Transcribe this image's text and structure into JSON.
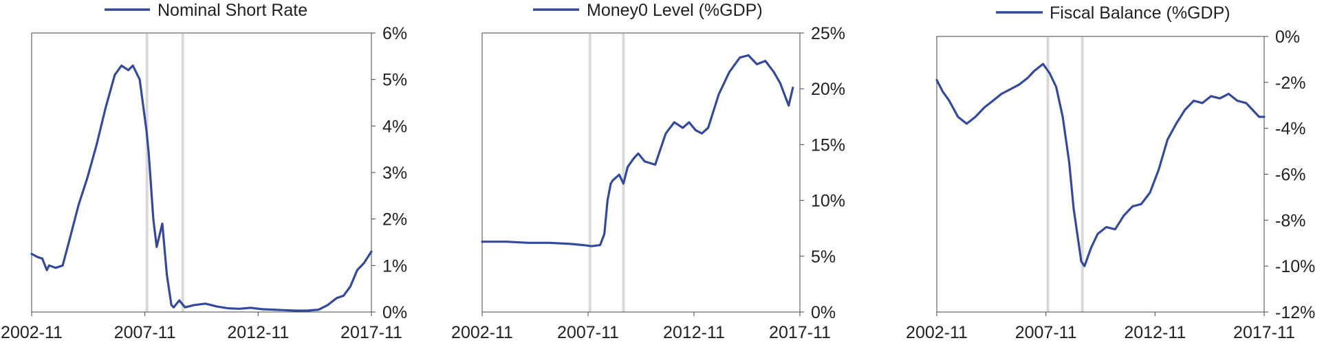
{
  "colors": {
    "series": "#34499a",
    "recession": "#d9d9d9",
    "axis": "#444444",
    "text": "#231f20"
  },
  "chart_data": [
    {
      "type": "line",
      "title": "",
      "legend": "Nominal Short Rate",
      "legend_position": "top",
      "xlabel": "",
      "ylabel": "",
      "x_ticks": [
        "2002-11",
        "2007-11",
        "2012-11",
        "2017-11"
      ],
      "y_ticks": [
        "6%",
        "5%",
        "4%",
        "3%",
        "2%",
        "1%",
        "0%"
      ],
      "ylim": [
        0,
        6
      ],
      "xlim": [
        2002.83,
        2017.83
      ],
      "grid": false,
      "recession_bands": [
        2007.92,
        2009.5
      ],
      "series": [
        {
          "name": "Nominal Short Rate",
          "x": [
            2002.83,
            2003.1,
            2003.3,
            2003.5,
            2003.6,
            2003.9,
            2004.2,
            2004.5,
            2004.9,
            2005.3,
            2005.7,
            2006.1,
            2006.5,
            2006.8,
            2007.1,
            2007.3,
            2007.6,
            2007.9,
            2008.0,
            2008.2,
            2008.35,
            2008.6,
            2008.8,
            2009.0,
            2009.1,
            2009.35,
            2009.6,
            2010.0,
            2010.5,
            2011.0,
            2011.5,
            2012.0,
            2012.5,
            2013.0,
            2013.5,
            2014.0,
            2014.5,
            2015.0,
            2015.5,
            2015.9,
            2016.3,
            2016.6,
            2016.9,
            2017.2,
            2017.5,
            2017.83
          ],
          "y": [
            1.25,
            1.18,
            1.15,
            0.9,
            1.0,
            0.95,
            1.0,
            1.55,
            2.3,
            2.9,
            3.6,
            4.4,
            5.1,
            5.3,
            5.2,
            5.3,
            5.0,
            3.9,
            3.4,
            2.0,
            1.4,
            1.9,
            0.8,
            0.15,
            0.1,
            0.25,
            0.1,
            0.15,
            0.18,
            0.12,
            0.08,
            0.07,
            0.09,
            0.06,
            0.05,
            0.04,
            0.03,
            0.03,
            0.05,
            0.15,
            0.3,
            0.35,
            0.55,
            0.9,
            1.05,
            1.3
          ]
        }
      ]
    },
    {
      "type": "line",
      "title": "",
      "legend": "Money0 Level (%GDP)",
      "legend_position": "top",
      "xlabel": "",
      "ylabel": "",
      "x_ticks": [
        "2002-11",
        "2007-11",
        "2012-11",
        "2017-11"
      ],
      "y_ticks": [
        "25%",
        "20%",
        "15%",
        "10%",
        "5%",
        "0%"
      ],
      "ylim": [
        0,
        25
      ],
      "xlim": [
        2002.83,
        2017.83
      ],
      "grid": false,
      "recession_bands": [
        2007.92,
        2009.5
      ],
      "series": [
        {
          "name": "Money0 Level (%GDP)",
          "x": [
            2002.83,
            2004.0,
            2005.0,
            2006.0,
            2007.0,
            2007.6,
            2008.0,
            2008.4,
            2008.6,
            2008.75,
            2008.9,
            2009.0,
            2009.3,
            2009.5,
            2009.7,
            2010.0,
            2010.2,
            2010.5,
            2011.0,
            2011.5,
            2011.9,
            2012.3,
            2012.6,
            2012.9,
            2013.2,
            2013.5,
            2014.0,
            2014.5,
            2015.0,
            2015.4,
            2015.8,
            2016.2,
            2016.6,
            2016.9,
            2017.1,
            2017.3,
            2017.5
          ],
          "y": [
            6.3,
            6.3,
            6.2,
            6.2,
            6.1,
            6.0,
            5.9,
            6.0,
            7.0,
            10.0,
            11.5,
            11.8,
            12.3,
            11.5,
            13.0,
            13.8,
            14.2,
            13.5,
            13.2,
            16.0,
            17.0,
            16.5,
            17.0,
            16.3,
            16.0,
            16.5,
            19.5,
            21.5,
            22.8,
            23.0,
            22.2,
            22.5,
            21.5,
            20.5,
            19.5,
            18.5,
            20.1
          ]
        }
      ]
    },
    {
      "type": "line",
      "title": "",
      "legend": "Fiscal Balance (%GDP)",
      "legend_position": "top",
      "xlabel": "",
      "ylabel": "",
      "x_ticks": [
        "2002-11",
        "2007-11",
        "2012-11",
        "2017-11"
      ],
      "y_ticks": [
        "0%",
        "-2%",
        "-4%",
        "-6%",
        "-8%",
        "-10%",
        "-12%"
      ],
      "ylim": [
        -12,
        0
      ],
      "xlim": [
        2002.83,
        2017.83
      ],
      "grid": false,
      "recession_bands": [
        2007.92,
        2009.5
      ],
      "series": [
        {
          "name": "Fiscal Balance (%GDP)",
          "x": [
            2002.83,
            2003.1,
            2003.4,
            2003.8,
            2004.2,
            2004.6,
            2005.0,
            2005.4,
            2005.8,
            2006.2,
            2006.6,
            2007.0,
            2007.3,
            2007.7,
            2008.0,
            2008.3,
            2008.6,
            2008.9,
            2009.1,
            2009.3,
            2009.45,
            2009.6,
            2009.9,
            2010.2,
            2010.6,
            2011.0,
            2011.4,
            2011.8,
            2012.2,
            2012.6,
            2013.0,
            2013.4,
            2013.8,
            2014.2,
            2014.6,
            2015.0,
            2015.4,
            2015.8,
            2016.2,
            2016.6,
            2017.0,
            2017.3,
            2017.6,
            2017.83
          ],
          "y": [
            -1.9,
            -2.4,
            -2.8,
            -3.5,
            -3.8,
            -3.5,
            -3.1,
            -2.8,
            -2.5,
            -2.3,
            -2.1,
            -1.8,
            -1.5,
            -1.2,
            -1.6,
            -2.2,
            -3.5,
            -5.5,
            -7.5,
            -8.8,
            -9.8,
            -10.0,
            -9.2,
            -8.6,
            -8.3,
            -8.4,
            -7.8,
            -7.4,
            -7.3,
            -6.8,
            -5.8,
            -4.5,
            -3.8,
            -3.2,
            -2.8,
            -2.9,
            -2.6,
            -2.7,
            -2.5,
            -2.8,
            -2.9,
            -3.2,
            -3.5,
            -3.5
          ]
        }
      ]
    }
  ]
}
